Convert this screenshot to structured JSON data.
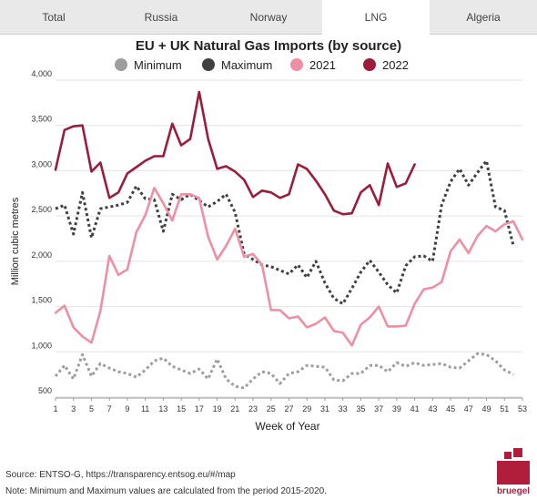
{
  "tabs": [
    {
      "label": "Total"
    },
    {
      "label": "Russia"
    },
    {
      "label": "Norway"
    },
    {
      "label": "LNG",
      "active": true
    },
    {
      "label": "Algeria"
    }
  ],
  "chart_data": {
    "type": "line",
    "title": "EU + UK Natural Gas Imports (by source)",
    "xlabel": "Week of Year",
    "ylabel": "Million cubic metres",
    "xlim": [
      1,
      53
    ],
    "ylim": [
      500,
      4000
    ],
    "xticks": [
      1,
      3,
      5,
      7,
      9,
      11,
      13,
      15,
      17,
      19,
      21,
      23,
      25,
      27,
      29,
      31,
      33,
      35,
      37,
      39,
      41,
      43,
      45,
      47,
      49,
      51,
      53
    ],
    "yticks": [
      {
        "value": 500,
        "label": "500"
      },
      {
        "value": 1000,
        "label": "1,000"
      },
      {
        "value": 1500,
        "label": "1,500"
      },
      {
        "value": 2000,
        "label": "2,000"
      },
      {
        "value": 2500,
        "label": "2,500"
      },
      {
        "value": 3000,
        "label": "3,000"
      },
      {
        "value": 3500,
        "label": "3,500"
      },
      {
        "value": 4000,
        "label": "4,000"
      }
    ],
    "legend_position": "top",
    "series": [
      {
        "name": "Minimum",
        "color": "#9e9e9e",
        "style": "dotted",
        "x": [
          1,
          2,
          3,
          4,
          5,
          6,
          7,
          8,
          9,
          10,
          11,
          12,
          13,
          14,
          15,
          16,
          17,
          18,
          19,
          20,
          21,
          22,
          23,
          24,
          25,
          26,
          27,
          28,
          29,
          30,
          31,
          32,
          33,
          34,
          35,
          36,
          37,
          38,
          39,
          40,
          41,
          42,
          43,
          44,
          45,
          46,
          47,
          48,
          49,
          50,
          51,
          52
        ],
        "values": [
          730,
          850,
          700,
          970,
          730,
          870,
          820,
          780,
          760,
          720,
          800,
          900,
          930,
          840,
          800,
          760,
          810,
          700,
          920,
          700,
          620,
          600,
          700,
          780,
          760,
          650,
          760,
          780,
          850,
          840,
          830,
          690,
          680,
          760,
          760,
          850,
          850,
          780,
          880,
          840,
          880,
          850,
          860,
          870,
          830,
          820,
          900,
          980,
          970,
          900,
          800,
          750
        ]
      },
      {
        "name": "Maximum",
        "color": "#404040",
        "style": "dotted",
        "x": [
          1,
          2,
          3,
          4,
          5,
          6,
          7,
          8,
          9,
          10,
          11,
          12,
          13,
          14,
          15,
          16,
          17,
          18,
          19,
          20,
          21,
          22,
          23,
          24,
          25,
          26,
          27,
          28,
          29,
          30,
          31,
          32,
          33,
          34,
          35,
          36,
          37,
          38,
          39,
          40,
          41,
          42,
          43,
          44,
          45,
          46,
          47,
          48,
          49,
          50,
          51,
          52
        ],
        "values": [
          2580,
          2620,
          2300,
          2760,
          2260,
          2580,
          2600,
          2620,
          2650,
          2830,
          2690,
          2680,
          2330,
          2740,
          2680,
          2740,
          2670,
          2600,
          2660,
          2740,
          2540,
          2080,
          2020,
          1960,
          1940,
          1900,
          1860,
          1960,
          1820,
          2000,
          1760,
          1590,
          1530,
          1700,
          1880,
          2010,
          1880,
          1740,
          1650,
          1950,
          2050,
          2060,
          2000,
          2620,
          2880,
          3020,
          2840,
          2980,
          3110,
          2600,
          2560,
          2170
        ]
      },
      {
        "name": "2021",
        "color": "#ef8fa3",
        "style": "solid",
        "x": [
          1,
          2,
          3,
          4,
          5,
          6,
          7,
          8,
          9,
          10,
          11,
          12,
          13,
          14,
          15,
          16,
          17,
          18,
          19,
          20,
          21,
          22,
          23,
          24,
          25,
          26,
          27,
          28,
          29,
          30,
          31,
          32,
          33,
          34,
          35,
          36,
          37,
          38,
          39,
          40,
          41,
          42,
          43,
          44,
          45,
          46,
          47,
          48,
          49,
          50,
          51,
          52,
          53
        ],
        "values": [
          1430,
          1510,
          1270,
          1170,
          1100,
          1450,
          2060,
          1850,
          1910,
          2320,
          2510,
          2810,
          2640,
          2450,
          2740,
          2740,
          2700,
          2270,
          2020,
          2170,
          2360,
          2050,
          2080,
          1960,
          1460,
          1460,
          1370,
          1390,
          1270,
          1310,
          1380,
          1230,
          1210,
          1070,
          1300,
          1380,
          1500,
          1280,
          1280,
          1290,
          1530,
          1690,
          1710,
          1770,
          2110,
          2240,
          2090,
          2280,
          2390,
          2330,
          2410,
          2440,
          2240
        ]
      },
      {
        "name": "2022",
        "color": "#9c1c3c",
        "style": "solid",
        "x": [
          1,
          2,
          3,
          4,
          5,
          6,
          7,
          8,
          9,
          10,
          11,
          12,
          13,
          14,
          15,
          16,
          17,
          18,
          19,
          20,
          21,
          22,
          23,
          24,
          25,
          26,
          27,
          28,
          29,
          30,
          31,
          32,
          33,
          34,
          35,
          36,
          37,
          38,
          39,
          40,
          41
        ],
        "values": [
          3010,
          3450,
          3490,
          3500,
          2990,
          3090,
          2700,
          2760,
          2970,
          3040,
          3110,
          3160,
          3160,
          3520,
          3280,
          3350,
          3870,
          3350,
          3020,
          3050,
          2990,
          2900,
          2710,
          2780,
          2760,
          2700,
          2740,
          3070,
          3020,
          2890,
          2740,
          2560,
          2520,
          2530,
          2760,
          2840,
          2620,
          3080,
          2820,
          2860,
          3070
        ]
      }
    ]
  },
  "footer": {
    "source": "Source: ENTSO-G,  https://transparency.entsog.eu/#/map",
    "note": "Note: Minimum and Maximum values are calculated from the period 2015-2020."
  },
  "logo": {
    "text": "bruegel",
    "color": "#b01e3c"
  }
}
